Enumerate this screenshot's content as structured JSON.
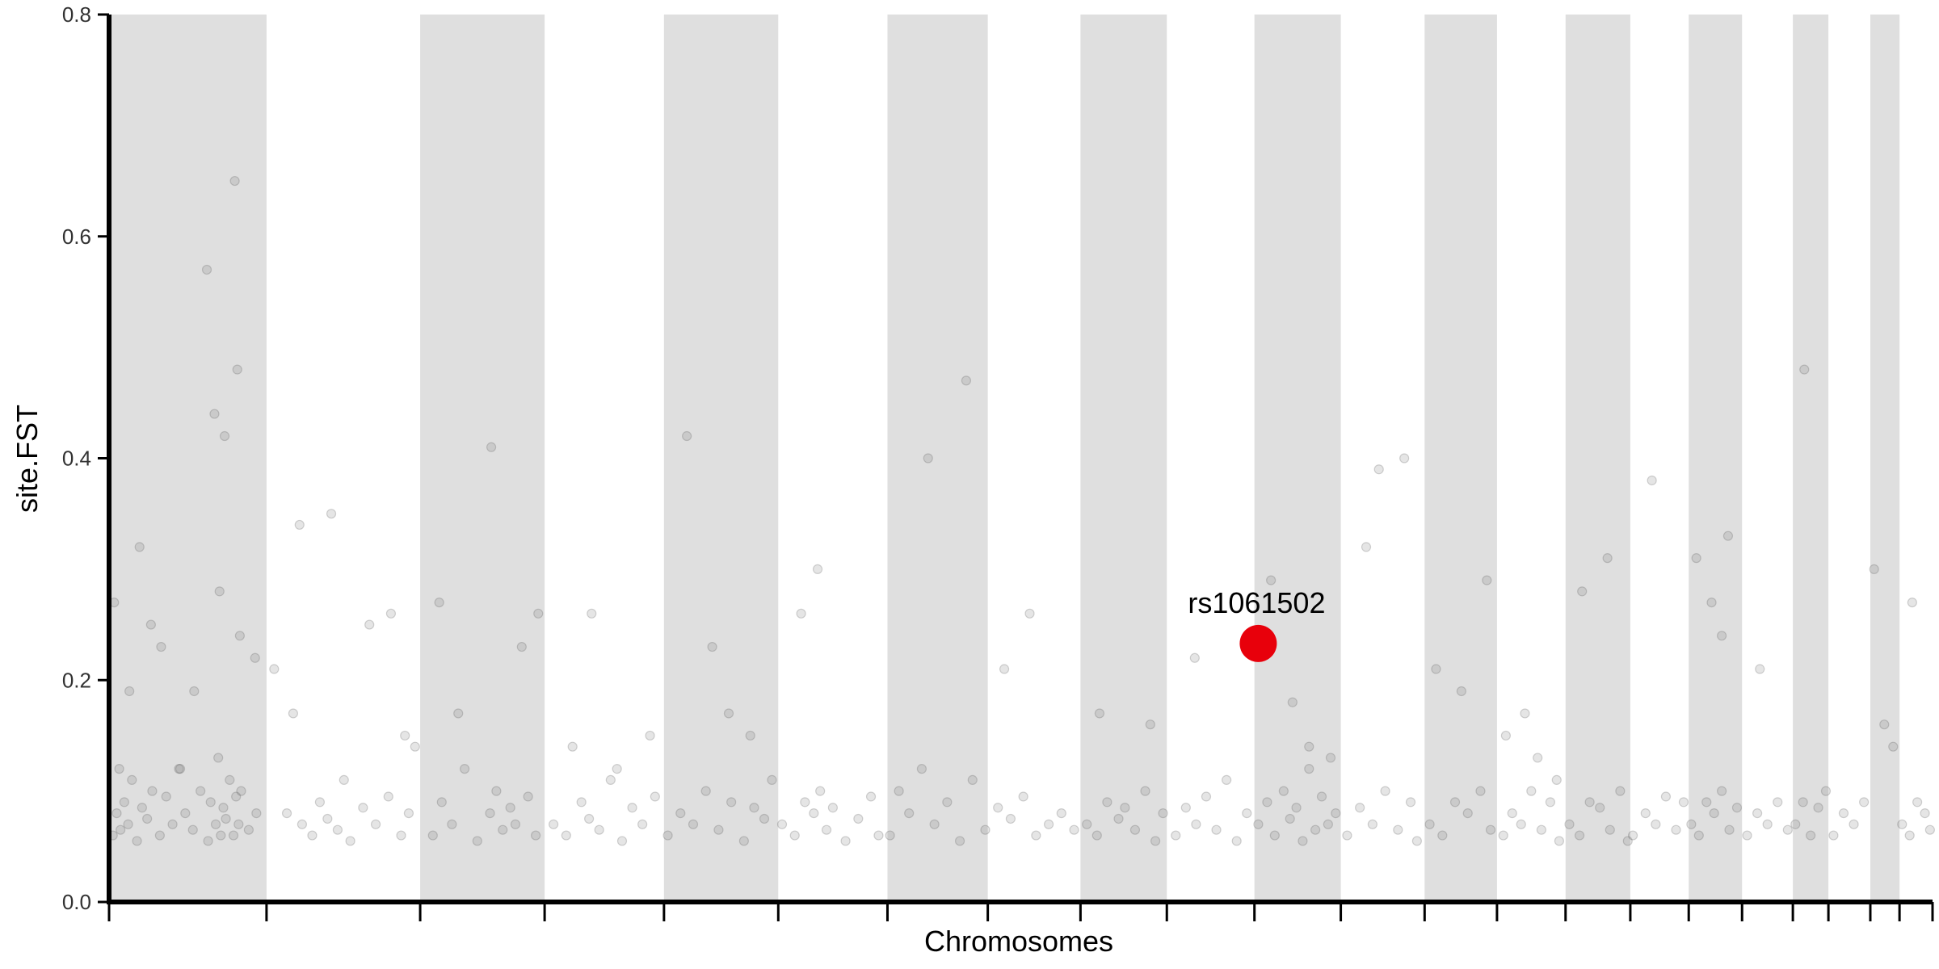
{
  "chart_data": {
    "type": "scatter",
    "title": "",
    "xlabel": "Chromosomes",
    "ylabel": "site.FST",
    "ylim": [
      0,
      0.8
    ],
    "yticks": [
      0.0,
      0.2,
      0.4,
      0.6,
      0.8
    ],
    "ytick_labels": [
      "0.0",
      "0.2",
      "0.4",
      "0.6",
      "0.8"
    ],
    "grid": false,
    "legend": "none",
    "chromosome_bands": [
      {
        "start": 0,
        "end": 124,
        "shaded": true
      },
      {
        "start": 124,
        "end": 245,
        "shaded": false
      },
      {
        "start": 245,
        "end": 343,
        "shaded": true
      },
      {
        "start": 343,
        "end": 437,
        "shaded": false
      },
      {
        "start": 437,
        "end": 527,
        "shaded": true
      },
      {
        "start": 527,
        "end": 613,
        "shaded": false
      },
      {
        "start": 613,
        "end": 692,
        "shaded": true
      },
      {
        "start": 692,
        "end": 765,
        "shaded": false
      },
      {
        "start": 765,
        "end": 833,
        "shaded": true
      },
      {
        "start": 833,
        "end": 902,
        "shaded": false
      },
      {
        "start": 902,
        "end": 970,
        "shaded": true
      },
      {
        "start": 970,
        "end": 1036,
        "shaded": false
      },
      {
        "start": 1036,
        "end": 1093,
        "shaded": true
      },
      {
        "start": 1093,
        "end": 1147,
        "shaded": false
      },
      {
        "start": 1147,
        "end": 1198,
        "shaded": true
      },
      {
        "start": 1198,
        "end": 1244,
        "shaded": false
      },
      {
        "start": 1244,
        "end": 1286,
        "shaded": true
      },
      {
        "start": 1286,
        "end": 1326,
        "shaded": false
      },
      {
        "start": 1326,
        "end": 1354,
        "shaded": true
      },
      {
        "start": 1354,
        "end": 1387,
        "shaded": false
      },
      {
        "start": 1387,
        "end": 1410,
        "shaded": true
      },
      {
        "start": 1410,
        "end": 1436,
        "shaded": false
      }
    ],
    "series": [
      {
        "x": [
          3,
          6,
          9,
          12,
          15,
          18,
          22,
          26,
          30,
          34,
          40,
          45,
          50,
          55,
          60,
          66,
          72,
          78,
          80,
          84,
          86,
          88,
          90,
          92,
          95,
          98,
          100,
          102,
          104,
          110,
          116,
          4,
          8,
          16,
          24,
          33,
          41,
          56,
          67,
          77,
          83,
          87,
          91,
          99,
          101,
          103,
          115,
          130,
          145,
          140,
          152,
          160,
          166,
          172,
          180,
          185,
          190,
          200,
          210,
          220,
          230,
          236,
          150,
          175,
          205,
          222,
          233,
          241,
          255,
          262,
          270,
          280,
          290,
          300,
          305,
          310,
          316,
          320,
          330,
          336,
          260,
          275,
          301,
          325,
          338,
          350,
          360,
          372,
          378,
          386,
          395,
          404,
          412,
          420,
          430,
          365,
          380,
          400,
          426,
          440,
          450,
          460,
          470,
          480,
          490,
          500,
          508,
          516,
          522,
          455,
          475,
          488,
          505,
          530,
          540,
          548,
          555,
          560,
          565,
          570,
          580,
          590,
          600,
          606,
          545,
          558,
          615,
          622,
          630,
          640,
          650,
          660,
          670,
          680,
          690,
          700,
          710,
          720,
          730,
          740,
          750,
          760,
          645,
          675,
          705,
          725,
          770,
          778,
          786,
          795,
          800,
          808,
          816,
          824,
          830,
          780,
          820,
          840,
          848,
          856,
          864,
          872,
          880,
          888,
          896,
          855,
          905,
          912,
          918,
          925,
          930,
          935,
          940,
          945,
          950,
          955,
          960,
          966,
          915,
          932,
          945,
          962,
          975,
          985,
          995,
          1005,
          1015,
          1025,
          1030,
          990,
          1000,
          1020,
          1040,
          1050,
          1060,
          1070,
          1080,
          1088,
          1045,
          1065,
          1085,
          1098,
          1105,
          1112,
          1120,
          1128,
          1135,
          1142,
          1100,
          1115,
          1125,
          1140,
          1150,
          1158,
          1166,
          1174,
          1182,
          1190,
          1196,
          1160,
          1180,
          1200,
          1210,
          1218,
          1226,
          1234,
          1240,
          1215,
          1246,
          1252,
          1258,
          1264,
          1270,
          1276,
          1282,
          1250,
          1262,
          1270,
          1275,
          1290,
          1298,
          1306,
          1314,
          1322,
          1300,
          1328,
          1334,
          1340,
          1346,
          1352,
          1335,
          1358,
          1366,
          1374,
          1382,
          1390,
          1398,
          1405,
          1412,
          1418,
          1424,
          1430,
          1434,
          1420
        ],
        "y": [
          0.06,
          0.08,
          0.065,
          0.09,
          0.07,
          0.11,
          0.055,
          0.085,
          0.075,
          0.1,
          0.06,
          0.095,
          0.07,
          0.12,
          0.08,
          0.065,
          0.1,
          0.055,
          0.09,
          0.07,
          0.13,
          0.06,
          0.085,
          0.075,
          0.11,
          0.06,
          0.095,
          0.07,
          0.1,
          0.065,
          0.08,
          0.27,
          0.12,
          0.19,
          0.32,
          0.25,
          0.23,
          0.12,
          0.19,
          0.57,
          0.44,
          0.28,
          0.42,
          0.65,
          0.48,
          0.24,
          0.22,
          0.21,
          0.17,
          0.08,
          0.07,
          0.06,
          0.09,
          0.075,
          0.065,
          0.11,
          0.055,
          0.085,
          0.07,
          0.095,
          0.06,
          0.08,
          0.34,
          0.35,
          0.25,
          0.26,
          0.15,
          0.14,
          0.06,
          0.09,
          0.07,
          0.12,
          0.055,
          0.08,
          0.1,
          0.065,
          0.085,
          0.07,
          0.095,
          0.06,
          0.27,
          0.17,
          0.41,
          0.23,
          0.26,
          0.07,
          0.06,
          0.09,
          0.075,
          0.065,
          0.11,
          0.055,
          0.085,
          0.07,
          0.095,
          0.14,
          0.26,
          0.12,
          0.15,
          0.06,
          0.08,
          0.07,
          0.1,
          0.065,
          0.09,
          0.055,
          0.085,
          0.075,
          0.11,
          0.42,
          0.23,
          0.17,
          0.15,
          0.07,
          0.06,
          0.09,
          0.08,
          0.1,
          0.065,
          0.085,
          0.055,
          0.075,
          0.095,
          0.06,
          0.26,
          0.3,
          0.06,
          0.1,
          0.08,
          0.12,
          0.07,
          0.09,
          0.055,
          0.11,
          0.065,
          0.085,
          0.075,
          0.095,
          0.06,
          0.07,
          0.08,
          0.065,
          0.4,
          0.47,
          0.21,
          0.26,
          0.07,
          0.06,
          0.09,
          0.075,
          0.085,
          0.065,
          0.1,
          0.055,
          0.08,
          0.17,
          0.16,
          0.06,
          0.085,
          0.07,
          0.095,
          0.065,
          0.11,
          0.055,
          0.08,
          0.22,
          0.07,
          0.09,
          0.06,
          0.1,
          0.075,
          0.085,
          0.055,
          0.12,
          0.065,
          0.095,
          0.07,
          0.08,
          0.29,
          0.18,
          0.14,
          0.13,
          0.06,
          0.085,
          0.07,
          0.1,
          0.065,
          0.09,
          0.055,
          0.32,
          0.39,
          0.4,
          0.07,
          0.06,
          0.09,
          0.08,
          0.1,
          0.065,
          0.21,
          0.19,
          0.29,
          0.06,
          0.08,
          0.07,
          0.1,
          0.065,
          0.09,
          0.055,
          0.15,
          0.17,
          0.13,
          0.11,
          0.07,
          0.06,
          0.09,
          0.085,
          0.065,
          0.1,
          0.055,
          0.28,
          0.31,
          0.06,
          0.08,
          0.07,
          0.095,
          0.065,
          0.09,
          0.38,
          0.07,
          0.06,
          0.09,
          0.08,
          0.1,
          0.065,
          0.085,
          0.31,
          0.27,
          0.24,
          0.33,
          0.06,
          0.08,
          0.07,
          0.09,
          0.065,
          0.21,
          0.07,
          0.09,
          0.06,
          0.085,
          0.1,
          0.48,
          0.06,
          0.08,
          0.07,
          0.09,
          0.3,
          0.16,
          0.14,
          0.07,
          0.06,
          0.09,
          0.08,
          0.065,
          0.27
        ]
      }
    ],
    "highlight": {
      "label": "rs1061502",
      "x": 905,
      "y": 0.233,
      "color": "#e8000b"
    }
  }
}
